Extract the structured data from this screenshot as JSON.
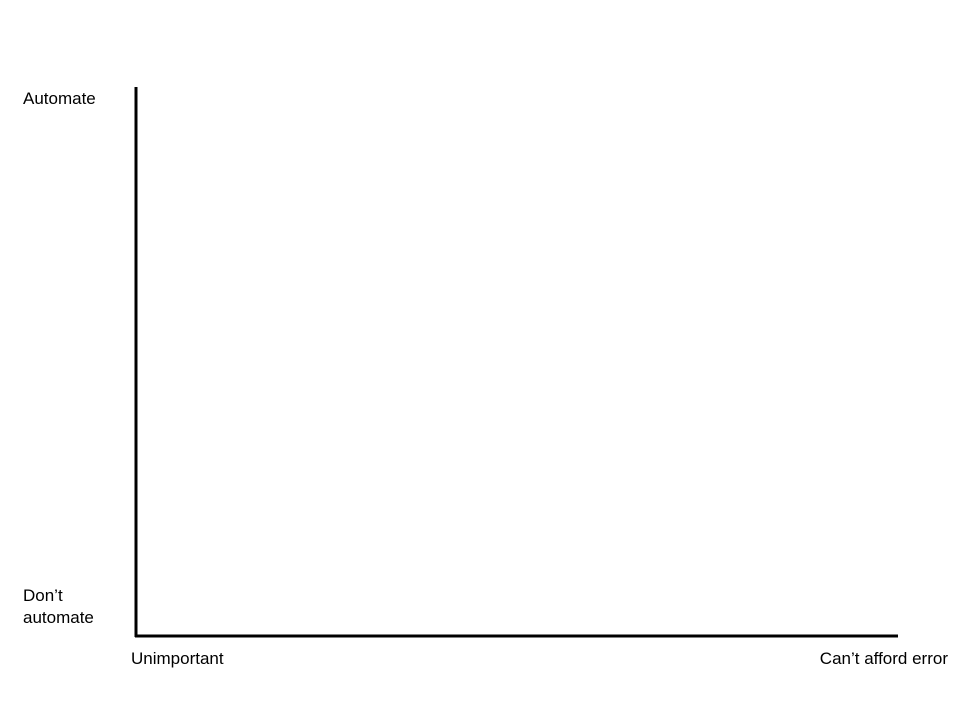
{
  "diagram": {
    "y_axis": {
      "top_label": "Automate",
      "bottom_label_line1": "Don’t",
      "bottom_label_line2": "automate"
    },
    "x_axis": {
      "left_label": "Unimportant",
      "right_label": "Can’t afford error"
    },
    "colors": {
      "axis": "#000000",
      "background": "#ffffff"
    }
  }
}
